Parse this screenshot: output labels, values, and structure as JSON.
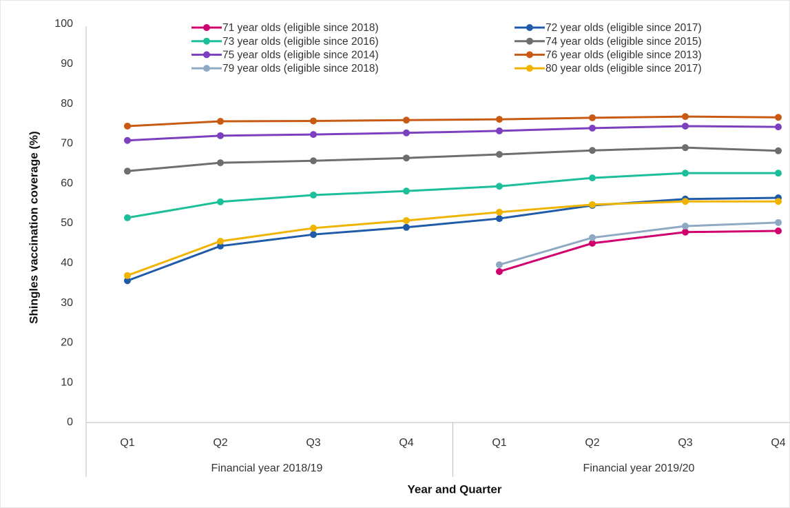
{
  "chart_data": {
    "type": "line",
    "y_label": "Shingles vaccination coverage (%)",
    "x_label": "Year and Quarter",
    "categories": [
      "Q1",
      "Q2",
      "Q3",
      "Q4",
      "Q1",
      "Q2",
      "Q3",
      "Q4"
    ],
    "groups": [
      {
        "label": "Financial year 2018/19",
        "size": 4
      },
      {
        "label": "Financial year 2019/20",
        "size": 4
      }
    ],
    "ylim": [
      0,
      100
    ],
    "yticks": [
      0,
      10,
      20,
      30,
      40,
      50,
      60,
      70,
      80,
      90,
      100
    ],
    "grid": false,
    "series": [
      {
        "name": "71 year olds (eligible since 2018)",
        "color": "#d1006f",
        "values": [
          null,
          null,
          null,
          null,
          37.9,
          45.0,
          47.8,
          48.1
        ]
      },
      {
        "name": "72 year olds (eligible since 2017)",
        "color": "#1f5ba8",
        "values": [
          35.6,
          44.3,
          47.2,
          49.0,
          51.2,
          54.5,
          56.1,
          56.4
        ]
      },
      {
        "name": "73 year olds (eligible since 2016)",
        "color": "#1dbf9a",
        "values": [
          51.4,
          55.4,
          57.1,
          58.1,
          59.3,
          61.4,
          62.6,
          62.6
        ]
      },
      {
        "name": "74 year olds (eligible since 2015)",
        "color": "#6e6e6e",
        "values": [
          63.1,
          65.2,
          65.7,
          66.4,
          67.3,
          68.3,
          69.0,
          68.2
        ]
      },
      {
        "name": "75 year olds (eligible since 2014)",
        "color": "#7b3fbf",
        "values": [
          70.8,
          72.0,
          72.3,
          72.7,
          73.2,
          73.9,
          74.4,
          74.2
        ]
      },
      {
        "name": "76 year olds (eligible since 2013)",
        "color": "#c85a14",
        "values": [
          74.4,
          75.6,
          75.7,
          75.9,
          76.1,
          76.5,
          76.8,
          76.6
        ]
      },
      {
        "name": "79 year olds (eligible since 2018)",
        "color": "#8fa9c4",
        "values": [
          null,
          null,
          null,
          null,
          39.6,
          46.4,
          49.3,
          50.2
        ]
      },
      {
        "name": "80 year olds (eligible since 2017)",
        "color": "#f0b400",
        "values": [
          36.9,
          45.5,
          48.8,
          50.7,
          52.8,
          54.7,
          55.5,
          55.5
        ]
      }
    ]
  }
}
